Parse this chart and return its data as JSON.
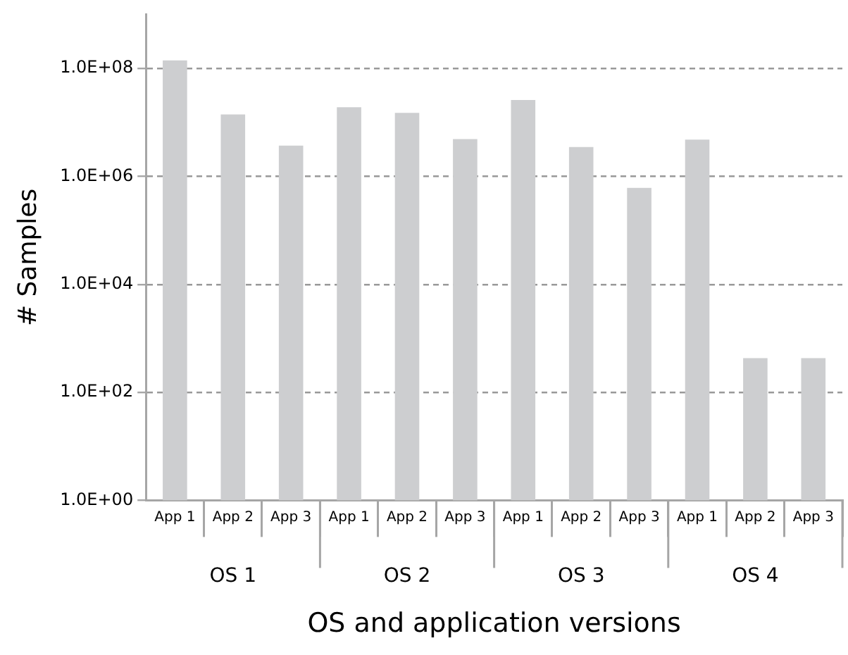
{
  "chart_data": {
    "type": "bar",
    "xlabel": "OS and application versions",
    "ylabel": "# Samples",
    "categories": [
      "App 1",
      "App 2",
      "App 3",
      "App 1",
      "App 2",
      "App 3",
      "App 1",
      "App 2",
      "App 3",
      "App 1",
      "App 2",
      "App 3"
    ],
    "values": [
      140000000,
      14000000,
      3700000,
      19000000,
      15000000,
      4900000,
      26000000,
      3500000,
      610000,
      4800000,
      430,
      430
    ],
    "color": "#cdced0",
    "annotations": [
      "OS 1",
      "OS 2",
      "OS 3",
      "OS 4"
    ],
    "log": "y",
    "ylim": [
      1,
      1000000000
    ],
    "yticks": [
      {
        "value": 1,
        "label": "1.0E+00"
      },
      {
        "value": 100,
        "label": "1.0E+02"
      },
      {
        "value": 10000,
        "label": "1.0E+04"
      },
      {
        "value": 1000000,
        "label": "1.0E+06"
      },
      {
        "value": 100000000,
        "label": "1.0E+08"
      }
    ],
    "grid": "y",
    "line_style": "dashed"
  }
}
